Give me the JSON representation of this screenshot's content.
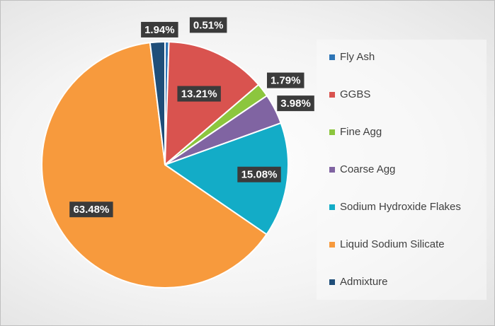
{
  "chart_data": {
    "type": "pie",
    "title": "",
    "legend_position": "right",
    "slices": [
      {
        "name": "Fly Ash",
        "value": 0.51,
        "label": "0.51%",
        "color": "#2e75b6"
      },
      {
        "name": "GGBS",
        "value": 13.21,
        "label": "13.21%",
        "color": "#d9534f"
      },
      {
        "name": "Fine Agg",
        "value": 1.79,
        "label": "1.79%",
        "color": "#8cc63e"
      },
      {
        "name": "Coarse Agg",
        "value": 3.98,
        "label": "3.98%",
        "color": "#8064a2"
      },
      {
        "name": "Sodium Hydroxide Flakes",
        "value": 15.08,
        "label": "15.08%",
        "color": "#13acc7"
      },
      {
        "name": "Liquid Sodium Silicate",
        "value": 63.48,
        "label": "63.48%",
        "color": "#f79a3d"
      },
      {
        "name": "Admixture",
        "value": 1.94,
        "label": "1.94%",
        "color": "#1f4e79"
      }
    ]
  }
}
